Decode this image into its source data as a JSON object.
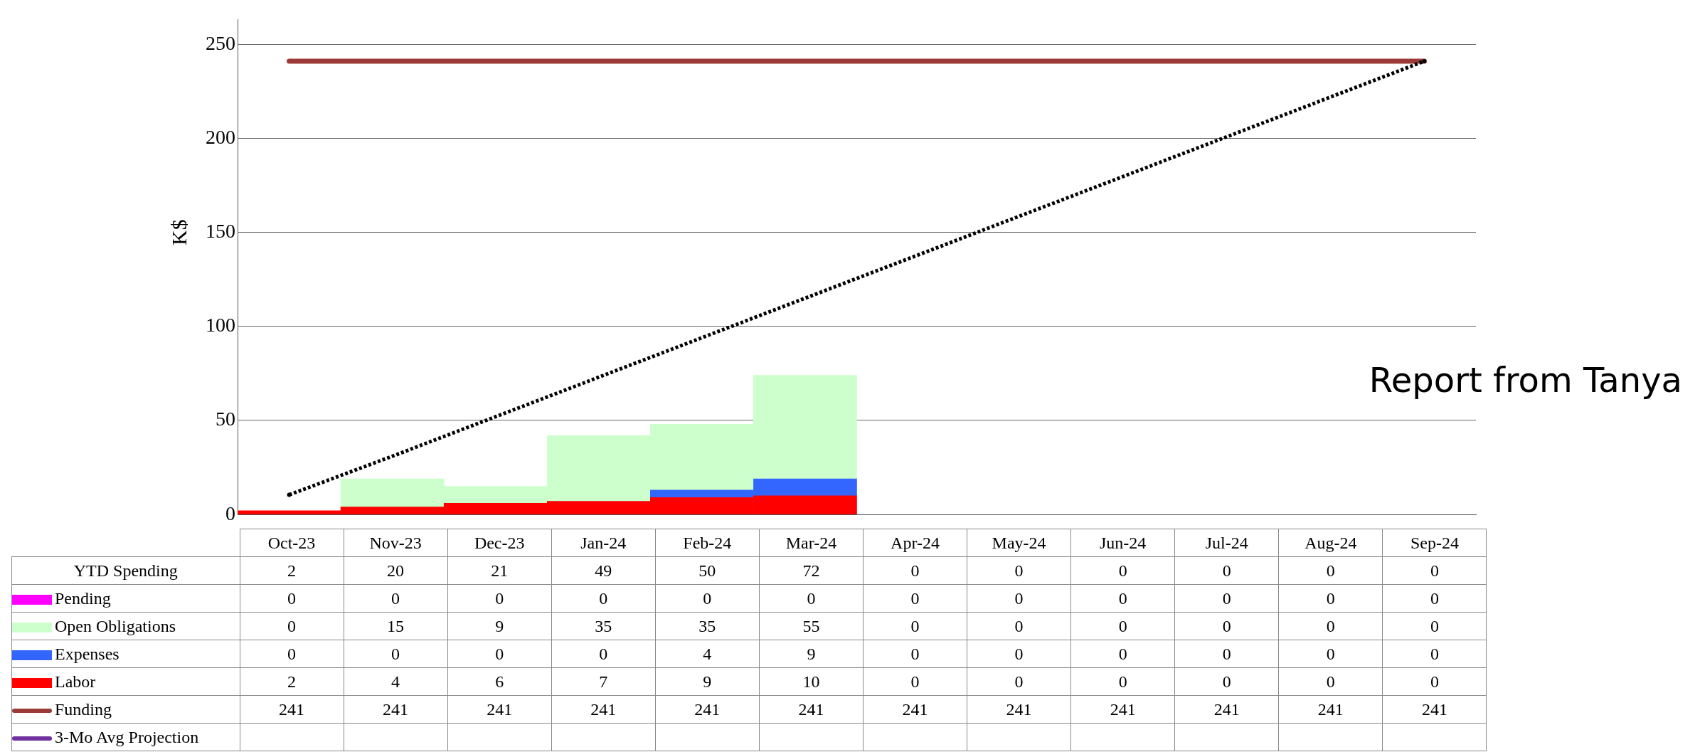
{
  "chart_data": {
    "type": "bar",
    "ylabel": "K$",
    "categories": [
      "Oct-23",
      "Nov-23",
      "Dec-23",
      "Jan-24",
      "Feb-24",
      "Mar-24",
      "Apr-24",
      "May-24",
      "Jun-24",
      "Jul-24",
      "Aug-24",
      "Sep-24"
    ],
    "stacked": true,
    "ylim": [
      0,
      263
    ],
    "yticks": [
      0,
      50,
      100,
      150,
      200,
      250
    ],
    "grid": "y",
    "legend": "bottom",
    "annotations": [
      "Report from Tanya"
    ],
    "series": [
      {
        "name": "YTD Spending",
        "type": "other",
        "values": [
          null,
          null,
          null,
          null,
          null,
          null,
          null,
          null,
          null,
          null,
          null,
          null
        ],
        "value_labels": [
          "2",
          "20",
          "21",
          "49",
          "50",
          "72",
          "0",
          "0",
          "0",
          "0",
          "0",
          "0"
        ]
      },
      {
        "name": "Labor",
        "color": "#ff0000",
        "values": [
          2,
          4,
          6,
          7,
          9,
          10,
          0,
          0,
          0,
          0,
          0,
          0
        ],
        "value_labels": [
          "2",
          "4",
          "6",
          "7",
          "9",
          "10",
          "0",
          "0",
          "0",
          "0",
          "0",
          "0"
        ]
      },
      {
        "name": "Expenses",
        "color": "#3366ff",
        "values": [
          0,
          0,
          0,
          0,
          4,
          9,
          0,
          0,
          0,
          0,
          0,
          0
        ],
        "value_labels": [
          "0",
          "0",
          "0",
          "0",
          "4",
          "9",
          "0",
          "0",
          "0",
          "0",
          "0",
          "0"
        ]
      },
      {
        "name": "Open Obligations",
        "color": "#ccffcc",
        "values": [
          0,
          15,
          9,
          35,
          35,
          55,
          0,
          0,
          0,
          0,
          0,
          0
        ],
        "value_labels": [
          "0",
          "15",
          "9",
          "35",
          "35",
          "55",
          "0",
          "0",
          "0",
          "0",
          "0",
          "0"
        ]
      },
      {
        "name": "Pending",
        "color": "#ff00ff",
        "values": [
          0,
          0,
          0,
          0,
          0,
          0,
          0,
          0,
          0,
          0,
          0,
          0
        ],
        "value_labels": [
          "0",
          "0",
          "0",
          "0",
          "0",
          "0",
          "0",
          "0",
          "0",
          "0",
          "0",
          "0"
        ]
      },
      {
        "name": "Funding",
        "type": "line",
        "color": "#9b3a36",
        "values": [
          241,
          241,
          241,
          241,
          241,
          241,
          241,
          241,
          241,
          241,
          241,
          241
        ],
        "value_labels": [
          "241",
          "241",
          "241",
          "241",
          "241",
          "241",
          "241",
          "241",
          "241",
          "241",
          "241",
          "241"
        ]
      },
      {
        "name": "3-Mo Avg Projection",
        "type": "line",
        "color": "#7030a0",
        "values": [
          null,
          null,
          null,
          null,
          null,
          null,
          null,
          null,
          null,
          null,
          null,
          null
        ]
      },
      {
        "type": "line",
        "color": "#000000",
        "line_style": "dotted",
        "values": [
          10.5,
          31,
          52,
          73,
          94,
          115,
          136,
          157,
          178,
          199,
          220,
          241
        ]
      }
    ]
  }
}
